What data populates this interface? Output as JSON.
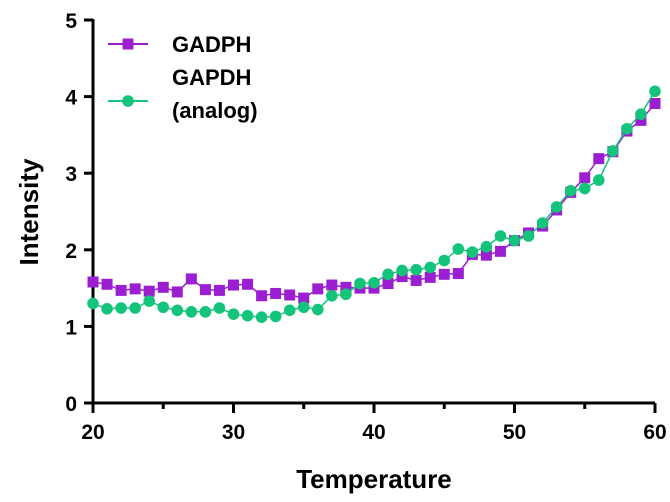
{
  "chart_data": {
    "type": "line",
    "xlabel": "Temperature",
    "ylabel": "Intensity",
    "xlim": [
      20,
      60
    ],
    "ylim": [
      0,
      5
    ],
    "xticks": [
      "20",
      "30",
      "40",
      "50",
      "60"
    ],
    "yticks": [
      "0",
      "1",
      "2",
      "3",
      "4",
      "5"
    ],
    "grid": false,
    "legend_position": "top-left",
    "series": [
      {
        "name": "GADPH",
        "marker": "square",
        "color": "#9b1fd1",
        "x": [
          20,
          21,
          22,
          23,
          24,
          25,
          26,
          27,
          28,
          29,
          30,
          31,
          32,
          33,
          34,
          35,
          36,
          37,
          38,
          39,
          40,
          41,
          42,
          43,
          44,
          45,
          46,
          47,
          48,
          49,
          50,
          51,
          52,
          53,
          54,
          55,
          56,
          57,
          58,
          59,
          60
        ],
        "y": [
          1.58,
          1.55,
          1.47,
          1.49,
          1.46,
          1.51,
          1.45,
          1.62,
          1.48,
          1.47,
          1.54,
          1.55,
          1.4,
          1.43,
          1.41,
          1.37,
          1.49,
          1.54,
          1.51,
          1.5,
          1.5,
          1.56,
          1.65,
          1.6,
          1.64,
          1.68,
          1.69,
          1.94,
          1.93,
          1.98,
          2.12,
          2.22,
          2.31,
          2.52,
          2.75,
          2.94,
          3.19,
          3.28,
          3.55,
          3.69,
          3.91
        ]
      },
      {
        "name": "GAPDH (analog)",
        "label_lines": [
          "GAPDH",
          "(analog)"
        ],
        "marker": "circle",
        "color": "#14c47a",
        "x": [
          20,
          21,
          22,
          23,
          24,
          25,
          26,
          27,
          28,
          29,
          30,
          31,
          32,
          33,
          34,
          35,
          36,
          37,
          38,
          39,
          40,
          41,
          42,
          43,
          44,
          45,
          46,
          47,
          48,
          49,
          50,
          51,
          52,
          53,
          54,
          55,
          56,
          57,
          58,
          59,
          60
        ],
        "y": [
          1.3,
          1.23,
          1.24,
          1.24,
          1.33,
          1.25,
          1.21,
          1.19,
          1.19,
          1.24,
          1.16,
          1.14,
          1.12,
          1.13,
          1.21,
          1.25,
          1.22,
          1.4,
          1.42,
          1.56,
          1.57,
          1.68,
          1.73,
          1.74,
          1.77,
          1.86,
          2.01,
          1.97,
          2.04,
          2.18,
          2.12,
          2.18,
          2.35,
          2.56,
          2.77,
          2.8,
          2.91,
          3.29,
          3.58,
          3.77,
          4.07
        ]
      }
    ]
  }
}
